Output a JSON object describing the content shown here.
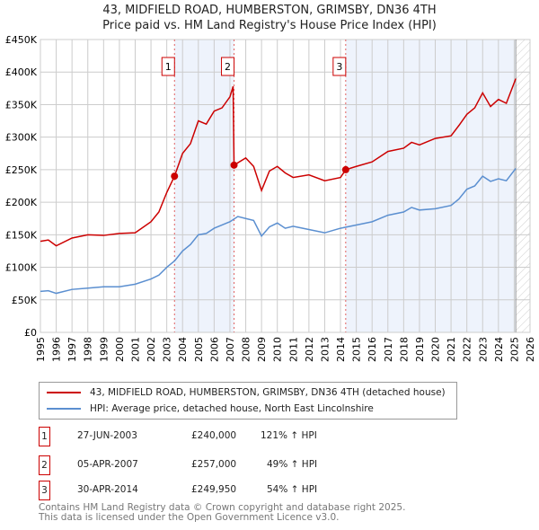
{
  "chart_data": {
    "type": "line",
    "title": "43, MIDFIELD ROAD, HUMBERSTON, GRIMSBY, DN36 4TH",
    "subtitle": "Price paid vs. HM Land Registry's House Price Index (HPI)",
    "xlim": [
      1995,
      2026
    ],
    "ylim": [
      0,
      450000
    ],
    "x_ticks": [
      "1995",
      "1996",
      "1997",
      "1998",
      "1999",
      "2000",
      "2001",
      "2002",
      "2003",
      "2004",
      "2005",
      "2006",
      "2007",
      "2008",
      "2009",
      "2010",
      "2011",
      "2012",
      "2013",
      "2014",
      "2015",
      "2016",
      "2017",
      "2018",
      "2019",
      "2020",
      "2021",
      "2022",
      "2023",
      "2024",
      "2025",
      "2026"
    ],
    "y_ticks": [
      "£0",
      "£50K",
      "£100K",
      "£150K",
      "£200K",
      "£250K",
      "£300K",
      "£350K",
      "£400K",
      "£450K"
    ],
    "grid": true,
    "series": [
      {
        "name": "43, MIDFIELD ROAD, HUMBERSTON, GRIMSBY, DN36 4TH (detached house)",
        "color": "#cc0000",
        "x": [
          1995,
          1995.5,
          1996,
          1997,
          1998,
          1999,
          2000,
          2001,
          2002,
          2002.5,
          2003,
          2003.49,
          2004,
          2004.5,
          2005,
          2005.5,
          2006,
          2006.5,
          2007,
          2007.2,
          2007.26,
          2008,
          2008.5,
          2009,
          2009.5,
          2010,
          2010.5,
          2011,
          2012,
          2013,
          2014,
          2014.33,
          2015,
          2016,
          2017,
          2018,
          2018.5,
          2019,
          2020,
          2021,
          2021.5,
          2022,
          2022.5,
          2023,
          2023.5,
          2024,
          2024.5,
          2025.1
        ],
        "y": [
          140000,
          142000,
          133000,
          145000,
          150000,
          149000,
          152000,
          153000,
          170000,
          185000,
          215000,
          240000,
          275000,
          290000,
          325000,
          320000,
          340000,
          345000,
          362000,
          378000,
          257000,
          268000,
          255000,
          218000,
          248000,
          255000,
          245000,
          238000,
          242000,
          233000,
          238000,
          249950,
          255000,
          262000,
          278000,
          283000,
          292000,
          288000,
          298000,
          302000,
          318000,
          335000,
          345000,
          368000,
          347000,
          358000,
          352000,
          390000
        ]
      },
      {
        "name": "HPI: Average price, detached house, North East Lincolnshire",
        "color": "#5b8fd0",
        "x": [
          1995,
          1995.5,
          1996,
          1997,
          1998,
          1999,
          2000,
          2001,
          2002,
          2002.5,
          2003,
          2003.5,
          2004,
          2004.5,
          2005,
          2005.5,
          2006,
          2006.5,
          2007,
          2007.5,
          2008,
          2008.5,
          2009,
          2009.5,
          2010,
          2010.5,
          2011,
          2012,
          2013,
          2014,
          2015,
          2016,
          2017,
          2018,
          2018.5,
          2019,
          2020,
          2021,
          2021.5,
          2022,
          2022.5,
          2023,
          2023.5,
          2024,
          2024.5,
          2025.1
        ],
        "y": [
          63000,
          64000,
          60000,
          66000,
          68000,
          70000,
          70000,
          74000,
          82000,
          88000,
          100000,
          110000,
          125000,
          135000,
          150000,
          152000,
          160000,
          165000,
          170000,
          178000,
          175000,
          172000,
          148000,
          162000,
          168000,
          160000,
          163000,
          158000,
          153000,
          160000,
          165000,
          170000,
          180000,
          185000,
          192000,
          188000,
          190000,
          195000,
          205000,
          220000,
          225000,
          240000,
          232000,
          236000,
          233000,
          252000
        ]
      }
    ],
    "sales": [
      {
        "label": "1",
        "x": 2003.49,
        "y": 240000
      },
      {
        "label": "2",
        "x": 2007.26,
        "y": 257000
      },
      {
        "label": "3",
        "x": 2014.33,
        "y": 249950
      }
    ],
    "data_end": 2025.1
  },
  "legend": {
    "red": "43, MIDFIELD ROAD, HUMBERSTON, GRIMSBY, DN36 4TH (detached house)",
    "blue": "HPI: Average price, detached house, North East Lincolnshire"
  },
  "table": [
    {
      "num": "1",
      "date": "27-JUN-2003",
      "price": "£240,000",
      "hpi": "121% ↑ HPI"
    },
    {
      "num": "2",
      "date": "05-APR-2007",
      "price": "£257,000",
      "hpi": "49% ↑ HPI"
    },
    {
      "num": "3",
      "date": "30-APR-2014",
      "price": "£249,950",
      "hpi": "54% ↑ HPI"
    }
  ],
  "footer": {
    "line1": "Contains HM Land Registry data © Crown copyright and database right 2025.",
    "line2": "This data is licensed under the Open Government Licence v3.0."
  }
}
